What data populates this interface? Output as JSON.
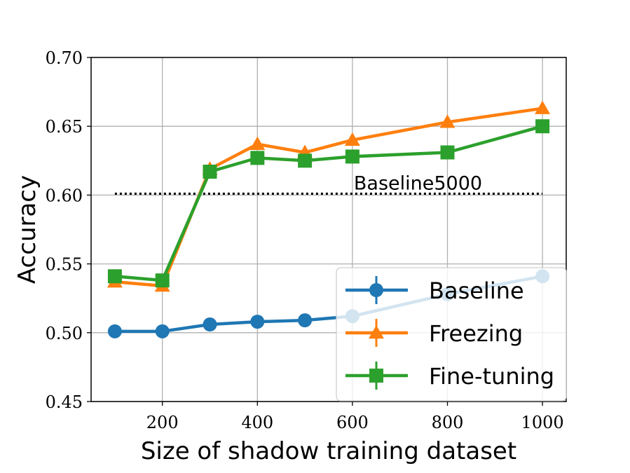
{
  "chart_data": {
    "type": "line",
    "xlabel": "Size of shadow training dataset",
    "ylabel": "Accuracy",
    "xlim": [
      50,
      1050
    ],
    "ylim": [
      0.45,
      0.7
    ],
    "xticks": [
      200,
      400,
      600,
      800,
      1000
    ],
    "yticks": [
      0.45,
      0.5,
      0.55,
      0.6,
      0.65,
      0.7
    ],
    "ytick_labels": [
      "0.45",
      "0.50",
      "0.55",
      "0.60",
      "0.65",
      "0.70"
    ],
    "grid": true,
    "legend_position": "lower-right",
    "x": [
      100,
      200,
      300,
      400,
      500,
      600,
      800,
      1000
    ],
    "series": [
      {
        "name": "Baseline",
        "color": "#1f77b4",
        "marker": "circle",
        "values": [
          0.501,
          0.501,
          0.506,
          0.508,
          0.509,
          0.512,
          0.528,
          0.541
        ]
      },
      {
        "name": "Freezing",
        "color": "#ff7f0e",
        "marker": "triangle",
        "values": [
          0.537,
          0.534,
          0.619,
          0.637,
          0.631,
          0.64,
          0.653,
          0.663
        ]
      },
      {
        "name": "Fine-tuning",
        "color": "#2ca02c",
        "marker": "square",
        "values": [
          0.541,
          0.538,
          0.617,
          0.627,
          0.625,
          0.628,
          0.631,
          0.65
        ]
      }
    ],
    "reference_line": {
      "label": "Baseline5000",
      "y": 0.601,
      "x_range": [
        100,
        1000
      ],
      "style": "dotted",
      "color": "#000000"
    }
  }
}
